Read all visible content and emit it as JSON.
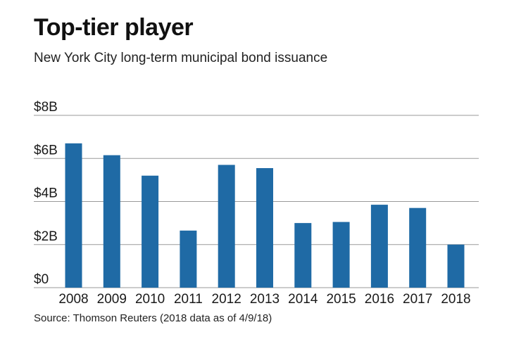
{
  "chart_data": {
    "type": "bar",
    "title": "Top-tier player",
    "subtitle": "New York City long-term municipal bond issuance",
    "source": "Source: Thomson Reuters (2018 data as of 4/9/18)",
    "categories": [
      "2008",
      "2009",
      "2010",
      "2011",
      "2012",
      "2013",
      "2014",
      "2015",
      "2016",
      "2017",
      "2018"
    ],
    "values": [
      6.7,
      6.15,
      5.2,
      2.65,
      5.7,
      5.55,
      3.0,
      3.05,
      3.85,
      3.7,
      2.0
    ],
    "unit": "billions USD",
    "yticks": [
      0,
      2,
      4,
      6,
      8
    ],
    "ytick_labels": [
      "$0",
      "$2B",
      "$4B",
      "$6B",
      "$8B"
    ],
    "ylim": [
      0,
      8
    ],
    "grid": true,
    "bar_color": "#1f6aa5",
    "grid_color": "#9a9a9a"
  }
}
